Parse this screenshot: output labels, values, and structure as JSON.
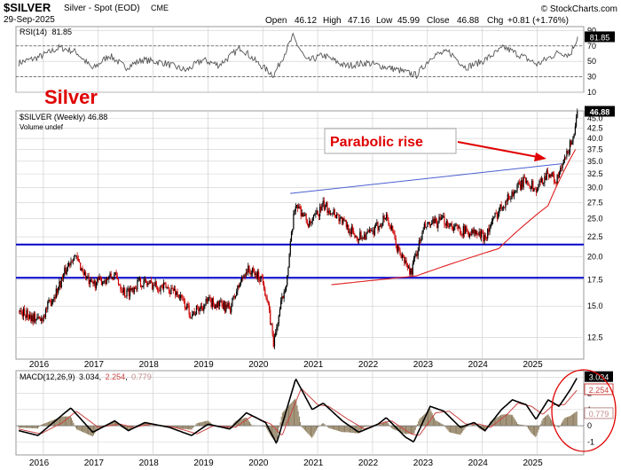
{
  "header": {
    "symbol": "$SILVER",
    "desc": "Silver - Spot (EOD)",
    "exchange": "CME",
    "date": "29-Sep-2025",
    "brand": "© StockCharts.com",
    "open_label": "Open",
    "open": "46.12",
    "high_label": "High",
    "high": "47.16",
    "low_label": "Low",
    "low": "45.99",
    "close_label": "Close",
    "close": "46.88",
    "chg_label": "Chg",
    "chg": "+0.81 (+1.76%)"
  },
  "colors": {
    "panel_border": "#9a9a9a",
    "grid": "#cfcfcf",
    "candle_up": "#000000",
    "candle_down": "#cc0000",
    "support_line": "#0000cc",
    "trend_line": "#4a5fd0",
    "parabola": "#e02020",
    "annotation": "#e00000",
    "rsi_line": "#555555",
    "macd_line": "#000000",
    "signal_line": "#cc4444",
    "histogram": "#8b7a5a",
    "label_box": "#000000"
  },
  "chart_data": [
    {
      "type": "line",
      "panel": "rsi",
      "title": "RSI(14) 81.85",
      "title_main": "RSI(14)",
      "title_value": "81.85",
      "current_value": "81.85",
      "ylim": [
        10,
        95
      ],
      "y_ticks": [
        "90",
        "70",
        "50",
        "30",
        "10"
      ],
      "reference_levels": [
        70,
        30
      ],
      "keypoints": [
        {
          "x": 2015.55,
          "y": 48
        },
        {
          "x": 2015.9,
          "y": 55
        },
        {
          "x": 2016.3,
          "y": 68
        },
        {
          "x": 2016.6,
          "y": 62
        },
        {
          "x": 2016.9,
          "y": 40
        },
        {
          "x": 2017.2,
          "y": 58
        },
        {
          "x": 2017.5,
          "y": 42
        },
        {
          "x": 2017.8,
          "y": 52
        },
        {
          "x": 2018.2,
          "y": 48
        },
        {
          "x": 2018.6,
          "y": 38
        },
        {
          "x": 2018.9,
          "y": 52
        },
        {
          "x": 2019.2,
          "y": 45
        },
        {
          "x": 2019.6,
          "y": 68
        },
        {
          "x": 2019.9,
          "y": 48
        },
        {
          "x": 2020.2,
          "y": 32
        },
        {
          "x": 2020.55,
          "y": 82
        },
        {
          "x": 2020.8,
          "y": 50
        },
        {
          "x": 2021.1,
          "y": 58
        },
        {
          "x": 2021.5,
          "y": 44
        },
        {
          "x": 2021.9,
          "y": 48
        },
        {
          "x": 2022.4,
          "y": 40
        },
        {
          "x": 2022.8,
          "y": 32
        },
        {
          "x": 2023.1,
          "y": 58
        },
        {
          "x": 2023.4,
          "y": 62
        },
        {
          "x": 2023.7,
          "y": 42
        },
        {
          "x": 2024.0,
          "y": 50
        },
        {
          "x": 2024.4,
          "y": 68
        },
        {
          "x": 2024.8,
          "y": 54
        },
        {
          "x": 2025.0,
          "y": 46
        },
        {
          "x": 2025.4,
          "y": 62
        },
        {
          "x": 2025.6,
          "y": 58
        },
        {
          "x": 2025.74,
          "y": 81.85
        }
      ],
      "annotation": "Silver"
    },
    {
      "type": "candlestick",
      "panel": "price",
      "title": "$SILVER (Weekly) 46.88",
      "legend": [
        "$SILVER (Weekly) 46.88",
        "Volume undef"
      ],
      "current_value": "46.88",
      "scale": "log",
      "ylim": [
        11,
        47
      ],
      "y_ticks": [
        "47.5",
        "45.0",
        "42.5",
        "40.0",
        "37.5",
        "35.0",
        "32.5",
        "30.0",
        "27.5",
        "25.0",
        "22.5",
        "20.0",
        "17.5",
        "15.0",
        "12.5"
      ],
      "x_labels": [
        "2016",
        "2017",
        "2018",
        "2019",
        "2020",
        "2021",
        "2022",
        "2023",
        "2024",
        "2025"
      ],
      "keypoints": [
        {
          "x": 2015.55,
          "y": 14.6
        },
        {
          "x": 2015.75,
          "y": 14.2
        },
        {
          "x": 2015.95,
          "y": 13.8
        },
        {
          "x": 2016.25,
          "y": 16.5
        },
        {
          "x": 2016.55,
          "y": 20.3
        },
        {
          "x": 2016.85,
          "y": 17.0
        },
        {
          "x": 2017.3,
          "y": 17.9
        },
        {
          "x": 2017.5,
          "y": 16.1
        },
        {
          "x": 2017.75,
          "y": 17.3
        },
        {
          "x": 2018.1,
          "y": 16.9
        },
        {
          "x": 2018.4,
          "y": 16.4
        },
        {
          "x": 2018.7,
          "y": 14.3
        },
        {
          "x": 2019.0,
          "y": 15.4
        },
        {
          "x": 2019.4,
          "y": 14.8
        },
        {
          "x": 2019.7,
          "y": 18.6
        },
        {
          "x": 2020.0,
          "y": 17.6
        },
        {
          "x": 2020.2,
          "y": 12.0
        },
        {
          "x": 2020.45,
          "y": 18.0
        },
        {
          "x": 2020.6,
          "y": 27.5
        },
        {
          "x": 2020.85,
          "y": 24.0
        },
        {
          "x": 2021.1,
          "y": 27.0
        },
        {
          "x": 2021.3,
          "y": 26.0
        },
        {
          "x": 2021.7,
          "y": 22.5
        },
        {
          "x": 2022.0,
          "y": 23.0
        },
        {
          "x": 2022.25,
          "y": 25.5
        },
        {
          "x": 2022.45,
          "y": 21.0
        },
        {
          "x": 2022.7,
          "y": 18.2
        },
        {
          "x": 2022.95,
          "y": 23.8
        },
        {
          "x": 2023.3,
          "y": 24.8
        },
        {
          "x": 2023.55,
          "y": 23.5
        },
        {
          "x": 2023.85,
          "y": 23.0
        },
        {
          "x": 2024.05,
          "y": 22.5
        },
        {
          "x": 2024.35,
          "y": 27.0
        },
        {
          "x": 2024.55,
          "y": 29.0
        },
        {
          "x": 2024.8,
          "y": 31.5
        },
        {
          "x": 2024.98,
          "y": 29.5
        },
        {
          "x": 2025.2,
          "y": 33.0
        },
        {
          "x": 2025.35,
          "y": 31.0
        },
        {
          "x": 2025.55,
          "y": 36.5
        },
        {
          "x": 2025.7,
          "y": 42.5
        },
        {
          "x": 2025.74,
          "y": 46.88
        }
      ],
      "support_levels": [
        21.5,
        17.7
      ],
      "trendline": [
        {
          "x": 2020.5,
          "y": 29.0
        },
        {
          "x": 2025.45,
          "y": 34.5
        }
      ],
      "parabola": [
        {
          "x": 2021.25,
          "y": 17.0
        },
        {
          "x": 2022.8,
          "y": 17.9
        },
        {
          "x": 2024.3,
          "y": 21.0
        },
        {
          "x": 2025.2,
          "y": 27.0
        },
        {
          "x": 2025.7,
          "y": 37.5
        }
      ],
      "annotation": "Parabolic rise"
    },
    {
      "type": "line",
      "panel": "macd",
      "title": "MACD(12,26,9) 3.034, 2.254, 0.779",
      "title_main": "MACD(12,26,9)",
      "title_macd": "3.034",
      "title_signal": "2.254",
      "title_hist": "0.779",
      "ylim": [
        -1.8,
        3.4
      ],
      "y_ticks": [
        "3",
        "2",
        "1",
        "0",
        "-1"
      ],
      "x_labels": [
        "2016",
        "2017",
        "2018",
        "2019",
        "2020",
        "2021",
        "2022",
        "2023",
        "2024",
        "2025"
      ],
      "value_labels": [
        "3.034",
        "2.254",
        "0.779"
      ],
      "macd_keypoints": [
        {
          "x": 2015.55,
          "y": -0.3
        },
        {
          "x": 2015.9,
          "y": -0.6
        },
        {
          "x": 2016.25,
          "y": 0.4
        },
        {
          "x": 2016.5,
          "y": 1.1
        },
        {
          "x": 2016.9,
          "y": -0.4
        },
        {
          "x": 2017.3,
          "y": 0.3
        },
        {
          "x": 2017.55,
          "y": -0.3
        },
        {
          "x": 2017.85,
          "y": 0.2
        },
        {
          "x": 2018.3,
          "y": -0.1
        },
        {
          "x": 2018.7,
          "y": -0.6
        },
        {
          "x": 2019.0,
          "y": 0.1
        },
        {
          "x": 2019.4,
          "y": -0.2
        },
        {
          "x": 2019.7,
          "y": 0.8
        },
        {
          "x": 2020.05,
          "y": 0.2
        },
        {
          "x": 2020.25,
          "y": -1.1
        },
        {
          "x": 2020.6,
          "y": 2.9
        },
        {
          "x": 2020.9,
          "y": 1.0
        },
        {
          "x": 2021.1,
          "y": 1.4
        },
        {
          "x": 2021.45,
          "y": 0.3
        },
        {
          "x": 2021.75,
          "y": -0.4
        },
        {
          "x": 2022.1,
          "y": 0.1
        },
        {
          "x": 2022.25,
          "y": 0.5
        },
        {
          "x": 2022.6,
          "y": -0.7
        },
        {
          "x": 2022.75,
          "y": -1.0
        },
        {
          "x": 2023.05,
          "y": 1.2
        },
        {
          "x": 2023.3,
          "y": 0.9
        },
        {
          "x": 2023.6,
          "y": -0.1
        },
        {
          "x": 2023.85,
          "y": 0.2
        },
        {
          "x": 2024.05,
          "y": -0.3
        },
        {
          "x": 2024.35,
          "y": 1.0
        },
        {
          "x": 2024.55,
          "y": 1.6
        },
        {
          "x": 2024.8,
          "y": 1.3
        },
        {
          "x": 2024.98,
          "y": 0.4
        },
        {
          "x": 2025.2,
          "y": 1.6
        },
        {
          "x": 2025.4,
          "y": 1.2
        },
        {
          "x": 2025.6,
          "y": 2.2
        },
        {
          "x": 2025.74,
          "y": 3.034
        }
      ],
      "signal_keypoints": [
        {
          "x": 2015.55,
          "y": -0.2
        },
        {
          "x": 2015.95,
          "y": -0.5
        },
        {
          "x": 2016.35,
          "y": 0.2
        },
        {
          "x": 2016.6,
          "y": 0.9
        },
        {
          "x": 2017.0,
          "y": -0.1
        },
        {
          "x": 2017.4,
          "y": 0.1
        },
        {
          "x": 2017.65,
          "y": -0.1
        },
        {
          "x": 2017.95,
          "y": 0.1
        },
        {
          "x": 2018.4,
          "y": -0.1
        },
        {
          "x": 2018.8,
          "y": -0.5
        },
        {
          "x": 2019.1,
          "y": 0.0
        },
        {
          "x": 2019.5,
          "y": -0.1
        },
        {
          "x": 2019.8,
          "y": 0.6
        },
        {
          "x": 2020.15,
          "y": 0.1
        },
        {
          "x": 2020.35,
          "y": -0.6
        },
        {
          "x": 2020.7,
          "y": 2.3
        },
        {
          "x": 2021.0,
          "y": 1.3
        },
        {
          "x": 2021.2,
          "y": 1.2
        },
        {
          "x": 2021.55,
          "y": 0.4
        },
        {
          "x": 2021.85,
          "y": -0.2
        },
        {
          "x": 2022.2,
          "y": 0.2
        },
        {
          "x": 2022.35,
          "y": 0.3
        },
        {
          "x": 2022.7,
          "y": -0.5
        },
        {
          "x": 2022.85,
          "y": -0.6
        },
        {
          "x": 2023.15,
          "y": 0.8
        },
        {
          "x": 2023.4,
          "y": 0.9
        },
        {
          "x": 2023.7,
          "y": 0.1
        },
        {
          "x": 2023.95,
          "y": 0.1
        },
        {
          "x": 2024.15,
          "y": -0.1
        },
        {
          "x": 2024.45,
          "y": 0.7
        },
        {
          "x": 2024.65,
          "y": 1.4
        },
        {
          "x": 2024.9,
          "y": 1.2
        },
        {
          "x": 2025.1,
          "y": 0.7
        },
        {
          "x": 2025.3,
          "y": 1.3
        },
        {
          "x": 2025.5,
          "y": 1.3
        },
        {
          "x": 2025.65,
          "y": 1.9
        },
        {
          "x": 2025.74,
          "y": 2.254
        }
      ]
    }
  ]
}
